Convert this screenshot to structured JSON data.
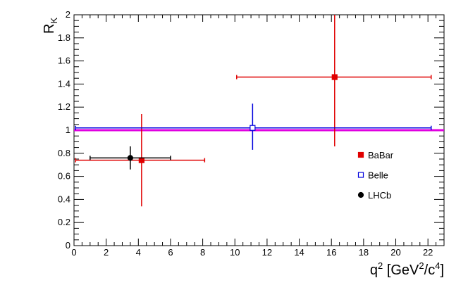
{
  "chart_data": {
    "type": "errorbar",
    "xlabel_parts": [
      "q",
      "2",
      " [GeV",
      "2",
      "/c",
      "4",
      "]"
    ],
    "ylabel_parts": [
      "R",
      "K"
    ],
    "xlim": [
      0,
      23
    ],
    "ylim": [
      0,
      2
    ],
    "xticks": [
      0,
      2,
      4,
      6,
      8,
      10,
      12,
      14,
      16,
      18,
      20,
      22
    ],
    "yticks": [
      0,
      0.2,
      0.4,
      0.6,
      0.8,
      1,
      1.2,
      1.4,
      1.6,
      1.8,
      2
    ],
    "reference_line": {
      "value": 1,
      "color": "#e000e0"
    },
    "legend": "right",
    "series": [
      {
        "name": "BaBar",
        "color": "#e00000",
        "marker": "square",
        "filled": true,
        "points": [
          {
            "x": 4.2,
            "y": 0.74,
            "xlow": 0.1,
            "xhigh": 8.12,
            "ylow": 0.34,
            "yhigh": 1.14
          },
          {
            "x": 16.2,
            "y": 1.46,
            "xlow": 10.11,
            "xhigh": 22.2,
            "ylow": 0.86,
            "yhigh": 2
          }
        ]
      },
      {
        "name": "Belle",
        "color": "#0000dd",
        "marker": "square",
        "filled": false,
        "points": [
          {
            "x": 11.1,
            "y": 1.02,
            "xlow": 0.1,
            "xhigh": 22.2,
            "ylow": 0.83,
            "yhigh": 1.23
          }
        ]
      },
      {
        "name": "LHCb",
        "color": "#000000",
        "marker": "circle",
        "filled": true,
        "points": [
          {
            "x": 3.5,
            "y": 0.76,
            "xlow": 1,
            "xhigh": 6,
            "ylow": 0.66,
            "yhigh": 0.86
          }
        ]
      }
    ]
  }
}
